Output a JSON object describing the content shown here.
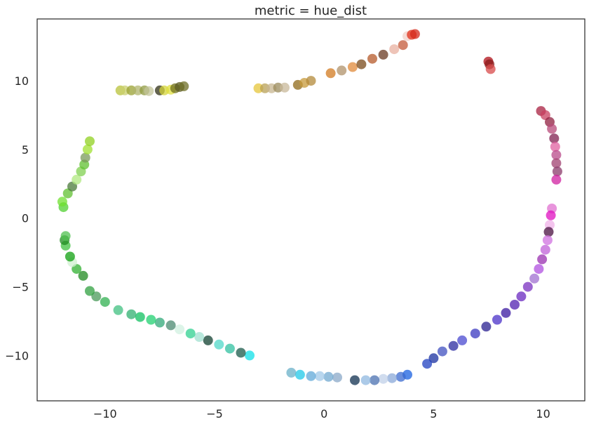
{
  "chart_data": {
    "type": "scatter",
    "title": "metric = hue_dist",
    "xlabel": "",
    "ylabel": "",
    "xlim": [
      -13.1,
      11.9
    ],
    "ylim": [
      -13.3,
      14.5
    ],
    "xticks": [
      -10,
      -5,
      0,
      5,
      10
    ],
    "yticks": [
      10,
      5,
      0,
      -5,
      -10
    ],
    "xtick_labels": [
      "−10",
      "−5",
      "0",
      "5",
      "10"
    ],
    "ytick_labels": [
      "10",
      "5",
      "0",
      "−5",
      "−10"
    ],
    "grid": false,
    "legend": "none",
    "marker_opacity": 0.75,
    "points": [
      {
        "x": -9.3,
        "y": 9.3,
        "color": "#b8c23a"
      },
      {
        "x": -9.1,
        "y": 9.3,
        "color": "#c9cf6e"
      },
      {
        "x": -8.8,
        "y": 9.3,
        "color": "#9aa232"
      },
      {
        "x": -8.5,
        "y": 9.3,
        "color": "#b0b46c"
      },
      {
        "x": -8.2,
        "y": 9.3,
        "color": "#8f9940"
      },
      {
        "x": -8.0,
        "y": 9.25,
        "color": "#c3c49a"
      },
      {
        "x": -7.5,
        "y": 9.3,
        "color": "#2f2f14"
      },
      {
        "x": -7.3,
        "y": 9.3,
        "color": "#d4d43a"
      },
      {
        "x": -7.0,
        "y": 9.35,
        "color": "#e0e040"
      },
      {
        "x": -6.8,
        "y": 9.45,
        "color": "#6f6f1c"
      },
      {
        "x": -6.6,
        "y": 9.55,
        "color": "#5a5a1e"
      },
      {
        "x": -6.4,
        "y": 9.6,
        "color": "#6d6d26"
      },
      {
        "x": -3.0,
        "y": 9.45,
        "color": "#e6c63a"
      },
      {
        "x": -2.7,
        "y": 9.45,
        "color": "#b8a055"
      },
      {
        "x": -2.4,
        "y": 9.45,
        "color": "#c7b590"
      },
      {
        "x": -2.1,
        "y": 9.5,
        "color": "#9a8a5a"
      },
      {
        "x": -1.8,
        "y": 9.5,
        "color": "#c8b89a"
      },
      {
        "x": -1.2,
        "y": 9.7,
        "color": "#8f6a1a"
      },
      {
        "x": -0.9,
        "y": 9.85,
        "color": "#c79a3a"
      },
      {
        "x": -0.6,
        "y": 10.0,
        "color": "#b38a3a"
      },
      {
        "x": 0.3,
        "y": 10.55,
        "color": "#d17a1f"
      },
      {
        "x": 0.8,
        "y": 10.75,
        "color": "#b0916a"
      },
      {
        "x": 1.3,
        "y": 11.0,
        "color": "#e08a3a"
      },
      {
        "x": 1.7,
        "y": 11.2,
        "color": "#7a4a1a"
      },
      {
        "x": 2.2,
        "y": 11.6,
        "color": "#b55a2a"
      },
      {
        "x": 2.7,
        "y": 11.9,
        "color": "#6a3a22"
      },
      {
        "x": 3.2,
        "y": 12.3,
        "color": "#e8b0a0"
      },
      {
        "x": 3.6,
        "y": 12.6,
        "color": "#c45a3a"
      },
      {
        "x": 3.8,
        "y": 13.25,
        "color": "#f2d0c8"
      },
      {
        "x": 4.0,
        "y": 13.35,
        "color": "#e0301a"
      },
      {
        "x": 4.15,
        "y": 13.4,
        "color": "#d4281a"
      },
      {
        "x": 7.5,
        "y": 11.4,
        "color": "#b01018"
      },
      {
        "x": 7.55,
        "y": 11.2,
        "color": "#8a1a1a"
      },
      {
        "x": 7.6,
        "y": 10.85,
        "color": "#d84a4a"
      },
      {
        "x": 9.9,
        "y": 7.8,
        "color": "#a82040"
      },
      {
        "x": 10.1,
        "y": 7.5,
        "color": "#c84060"
      },
      {
        "x": 10.3,
        "y": 7.0,
        "color": "#902040"
      },
      {
        "x": 10.4,
        "y": 6.5,
        "color": "#b84a7a"
      },
      {
        "x": 10.5,
        "y": 5.8,
        "color": "#802050"
      },
      {
        "x": 10.55,
        "y": 5.2,
        "color": "#e060a0"
      },
      {
        "x": 10.6,
        "y": 4.6,
        "color": "#b84a8a"
      },
      {
        "x": 10.6,
        "y": 4.0,
        "color": "#a04070"
      },
      {
        "x": 10.65,
        "y": 3.4,
        "color": "#8a3a6a"
      },
      {
        "x": 10.6,
        "y": 2.8,
        "color": "#d020a0"
      },
      {
        "x": 10.4,
        "y": 0.7,
        "color": "#e070d0"
      },
      {
        "x": 10.35,
        "y": 0.2,
        "color": "#e010c0"
      },
      {
        "x": 10.3,
        "y": -0.5,
        "color": "#f0b0e8"
      },
      {
        "x": 10.25,
        "y": -1.0,
        "color": "#4a1040"
      },
      {
        "x": 10.2,
        "y": -1.6,
        "color": "#d070e0"
      },
      {
        "x": 10.1,
        "y": -2.3,
        "color": "#c060d8"
      },
      {
        "x": 9.95,
        "y": -3.0,
        "color": "#9a30b0"
      },
      {
        "x": 9.8,
        "y": -3.7,
        "color": "#b050e0"
      },
      {
        "x": 9.6,
        "y": -4.4,
        "color": "#a070d0"
      },
      {
        "x": 9.3,
        "y": -5.0,
        "color": "#7a30c0"
      },
      {
        "x": 9.0,
        "y": -5.7,
        "color": "#6a28c0"
      },
      {
        "x": 8.7,
        "y": -6.3,
        "color": "#5020b0"
      },
      {
        "x": 8.3,
        "y": -6.9,
        "color": "#3a18a0"
      },
      {
        "x": 7.9,
        "y": -7.4,
        "color": "#4a30c8"
      },
      {
        "x": 7.4,
        "y": -7.9,
        "color": "#2a2090"
      },
      {
        "x": 6.9,
        "y": -8.4,
        "color": "#3a38c0"
      },
      {
        "x": 6.3,
        "y": -8.9,
        "color": "#4a4ad0"
      },
      {
        "x": 5.9,
        "y": -9.3,
        "color": "#2a2aa0"
      },
      {
        "x": 5.4,
        "y": -9.7,
        "color": "#4050c0"
      },
      {
        "x": 5.0,
        "y": -10.2,
        "color": "#1a30a0"
      },
      {
        "x": 4.7,
        "y": -10.6,
        "color": "#2040c0"
      },
      {
        "x": 3.8,
        "y": -11.4,
        "color": "#1a60e0"
      },
      {
        "x": 3.5,
        "y": -11.55,
        "color": "#3a6ad0"
      },
      {
        "x": 3.1,
        "y": -11.65,
        "color": "#8aa8d8"
      },
      {
        "x": 2.7,
        "y": -11.7,
        "color": "#c0d0e8"
      },
      {
        "x": 2.3,
        "y": -11.8,
        "color": "#4a70b0"
      },
      {
        "x": 1.9,
        "y": -11.8,
        "color": "#90b8e0"
      },
      {
        "x": 1.4,
        "y": -11.8,
        "color": "#103050"
      },
      {
        "x": 0.6,
        "y": -11.6,
        "color": "#8aa8c8"
      },
      {
        "x": 0.2,
        "y": -11.55,
        "color": "#70a8d0"
      },
      {
        "x": -0.2,
        "y": -11.5,
        "color": "#a0c8e8"
      },
      {
        "x": -0.6,
        "y": -11.5,
        "color": "#60a8d8"
      },
      {
        "x": -1.1,
        "y": -11.4,
        "color": "#20c8e8"
      },
      {
        "x": -1.5,
        "y": -11.25,
        "color": "#6ab0c8"
      },
      {
        "x": -3.4,
        "y": -10.0,
        "color": "#10e0e8"
      },
      {
        "x": -3.8,
        "y": -9.8,
        "color": "#1a5a4a"
      },
      {
        "x": -4.3,
        "y": -9.5,
        "color": "#30c0a0"
      },
      {
        "x": -4.8,
        "y": -9.2,
        "color": "#50d8c8"
      },
      {
        "x": -5.3,
        "y": -8.9,
        "color": "#104030"
      },
      {
        "x": -5.7,
        "y": -8.65,
        "color": "#a0e0d0"
      },
      {
        "x": -6.1,
        "y": -8.4,
        "color": "#30d090"
      },
      {
        "x": -6.6,
        "y": -8.1,
        "color": "#d0f0e0"
      },
      {
        "x": -7.0,
        "y": -7.8,
        "color": "#4a8a70"
      },
      {
        "x": -7.5,
        "y": -7.6,
        "color": "#30a878"
      },
      {
        "x": -7.9,
        "y": -7.4,
        "color": "#20d070"
      },
      {
        "x": -8.4,
        "y": -7.2,
        "color": "#10c060"
      },
      {
        "x": -8.8,
        "y": -7.0,
        "color": "#30b070"
      },
      {
        "x": -9.4,
        "y": -6.7,
        "color": "#40c080"
      },
      {
        "x": -10.0,
        "y": -6.1,
        "color": "#30b050"
      },
      {
        "x": -10.4,
        "y": -5.7,
        "color": "#4a9a5a"
      },
      {
        "x": -10.7,
        "y": -5.3,
        "color": "#30a040"
      },
      {
        "x": -11.0,
        "y": -4.2,
        "color": "#208a20"
      },
      {
        "x": -11.3,
        "y": -3.7,
        "color": "#30b030"
      },
      {
        "x": -11.5,
        "y": -3.2,
        "color": "#d0f0d0"
      },
      {
        "x": -11.6,
        "y": -2.8,
        "color": "#10a010"
      },
      {
        "x": -11.8,
        "y": -2.0,
        "color": "#40c040"
      },
      {
        "x": -11.85,
        "y": -1.6,
        "color": "#208a20"
      },
      {
        "x": -11.8,
        "y": -1.3,
        "color": "#50c050"
      },
      {
        "x": -11.9,
        "y": 0.8,
        "color": "#50d030"
      },
      {
        "x": -11.95,
        "y": 1.2,
        "color": "#70e030"
      },
      {
        "x": -11.7,
        "y": 1.8,
        "color": "#60c030"
      },
      {
        "x": -11.5,
        "y": 2.3,
        "color": "#4a7a3a"
      },
      {
        "x": -11.3,
        "y": 2.8,
        "color": "#b0e880"
      },
      {
        "x": -11.1,
        "y": 3.4,
        "color": "#80d050"
      },
      {
        "x": -10.95,
        "y": 3.9,
        "color": "#60c030"
      },
      {
        "x": -10.9,
        "y": 4.4,
        "color": "#7a9a5a"
      },
      {
        "x": -10.8,
        "y": 5.0,
        "color": "#a0e030"
      },
      {
        "x": -10.7,
        "y": 5.6,
        "color": "#90d020"
      }
    ]
  }
}
